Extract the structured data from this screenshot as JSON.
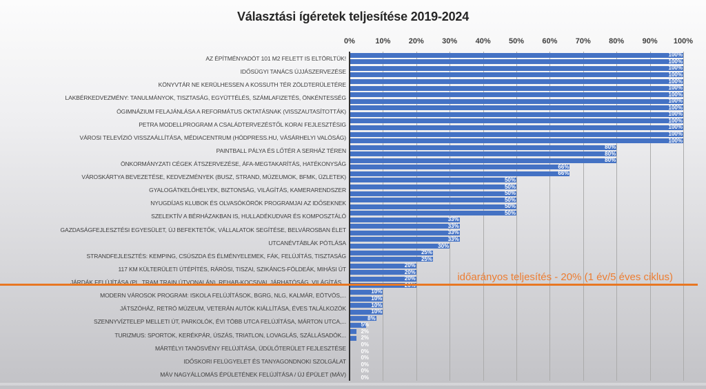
{
  "title": "Választási ígéretek teljesítése 2019-2024",
  "annotation": {
    "text": "időarányos teljesítés - 20% (1 év/5 éves ciklus)",
    "text_color": "#ED7D31",
    "line_color": "#E87722"
  },
  "axis": {
    "ticks": [
      "0%",
      "10%",
      "20%",
      "30%",
      "40%",
      "50%",
      "60%",
      "70%",
      "80%",
      "90%",
      "100%"
    ]
  },
  "colors": {
    "bar": "#4472C4",
    "grid": "#ABABAB",
    "axis_line": "#2F2F2F",
    "title_text": "#262626",
    "tick_text": "#3F3F3F",
    "category_text": "#3D3D3D",
    "value_label_text": "#FFFFFF"
  },
  "chart_data": {
    "type": "bar",
    "orientation": "horizontal",
    "title": "Választási ígéretek teljesítése 2019-2024",
    "xlabel": "",
    "ylabel": "",
    "xlim": [
      0,
      100
    ],
    "x_ticks": [
      0,
      10,
      20,
      30,
      40,
      50,
      60,
      70,
      80,
      90,
      100
    ],
    "x_tick_format": "percent",
    "grid": true,
    "legend": "none",
    "bar_color": "#4472C4",
    "data_labels": "inside-end, white",
    "annotation_line": {
      "text": "időarányos teljesítés - 20% (1 év/5 éves ciklus)",
      "value": 20,
      "color": "#E87722",
      "orientation": "horizontal-under-row",
      "under_category_index": 17
    },
    "categories": [
      "AZ ÉPÍTMÉNYADÓT 101 M2 FELETT IS ELTÖRLTÜK!",
      "IDŐSÜGYI TANÁCS ÚJJÁSZERVEZÉSE",
      "KÖNYVTÁR NE KERÜLHESSEN A KOSSUTH TÉR ZÖLDTERÜLETÉRE",
      "LAKBÉRKEDVEZMÉNY: TANULMÁNYOK, TISZTASÁG, EGYÜTTÉLÉS, SZÁMLAFIZETÉS, ÖNKÉNTESSÉG",
      "ÓGIMNÁZIUM FELAJÁNLÁSA A REFORMÁTUS OKTATÁSNAK (VISSZAUTASÍTOTTÁK)",
      "PETRA MODELLPROGRAM A CSALÁDTERVEZÉSTŐL KORAI FEJLESZTÉSIG",
      "VÁROSI TELEVÍZIÓ VISSZAÁLLÍTÁSA, MÉDIACENTRUM (HÓDPRESS.HU, VÁSÁRHELYI VALÓSÁG)",
      "PAINTBALL PÁLYA ÉS LŐTÉR A SERHÁZ TÉREN",
      "ÖNKORMÁNYZATI CÉGEK ÁTSZERVEZÉSE, ÁFA-MEGTAKARÍTÁS, HATÉKONYSÁG",
      "VÁROSKÁRTYA BEVEZETÉSE, KEDVEZMÉNYEK (BUSZ, STRAND, MÚZEUMOK, BFMK, ÜZLETEK)",
      "GYALOGÁTKELŐHELYEK, BIZTONSÁG, VILÁGÍTÁS, KAMERARENDSZER",
      "NYUGDÍJAS KLUBOK ÉS OLVASÓKÖRÖK PROGRAMJAI AZ IDŐSEKNEK",
      "SZELEKTÍV A BÉRHÁZAKBAN IS, HULLADÉKUDVAR ÉS KOMPOSZTÁLÓ",
      "GAZDASÁGFEJLESZTÉSI EGYESÜLET, ÚJ BEFEKTETŐK, VÁLLALATOK SEGÍTÉSE, BELVÁROSBAN ÉLET",
      "UTCANÉVTÁBLÁK PÓTLÁSA",
      "STRANDFEJLESZTÉS: KEMPING, CSÚSZDA ÉS ÉLMÉNYELEMEK, FÁK, FELÚJÍTÁS, TISZTASÁG",
      "117 KM KÜLTERÜLETI ÚTÉPÍTÉS, RÁRÓSI, TISZAI, SZIKÁNCS-FÖLDEÁK, MIHÁSI ÚT",
      "JÁRDÁK FELÚJÍTÁSA (PL. TRAM TRAIN ÚTVONALÁN), REHAB-KOCSIVAL JÁRHATÓSÁG, VILÁGÍTÁS...",
      "MODERN VÁROSOK PROGRAM: ISKOLA FELÚJÍTÁSOK, BGRG, NLG, KALMÁR, EÖTVÖS,...",
      "JÁTSZÓHÁZ, RETRÓ MÚZEUM, VETERÁN AUTÓK KIÁLLÍTÁSA, ÉVES TALÁLKOZÓK",
      "SZENNYVÍZTELEP MELLETI ÚT, PARKOLÓK, ÉVI TÖBB UTCA FELÚJÍTÁSA, MÁRTON UTCA,...",
      "TURIZMUS: SPORTOK, KERÉKPÁR, ÚSZÁS, TRIATLON, LOVAGLÁS, SZÁLLÁSADÓK...",
      "MÁRTÉLYI TANÖSVÉNY FELÚJÍTÁSA, ÜDÜLŐTERÜLET FEJLESZTÉSE",
      "IDŐSKORI FELÜGYELET ÉS TANYAGONDNOKI SZOLGÁLAT",
      "MÁV NAGYÁLLOMÁS ÉPÜLETÉNEK FELÚJÍTÁSA / ÚJ ÉPÜLET (MÁV)"
    ],
    "series": [
      {
        "name": "series-1",
        "values": [
          100,
          100,
          100,
          100,
          100,
          100,
          100,
          80,
          80,
          66,
          50,
          50,
          50,
          33,
          33,
          25,
          20,
          20,
          10,
          10,
          8,
          2,
          0,
          0,
          0
        ]
      },
      {
        "name": "series-2",
        "values": [
          100,
          100,
          100,
          100,
          100,
          100,
          100,
          80,
          66,
          50,
          50,
          50,
          33,
          33,
          30,
          25,
          20,
          20,
          10,
          10,
          5,
          2,
          0,
          0,
          0
        ]
      }
    ]
  }
}
